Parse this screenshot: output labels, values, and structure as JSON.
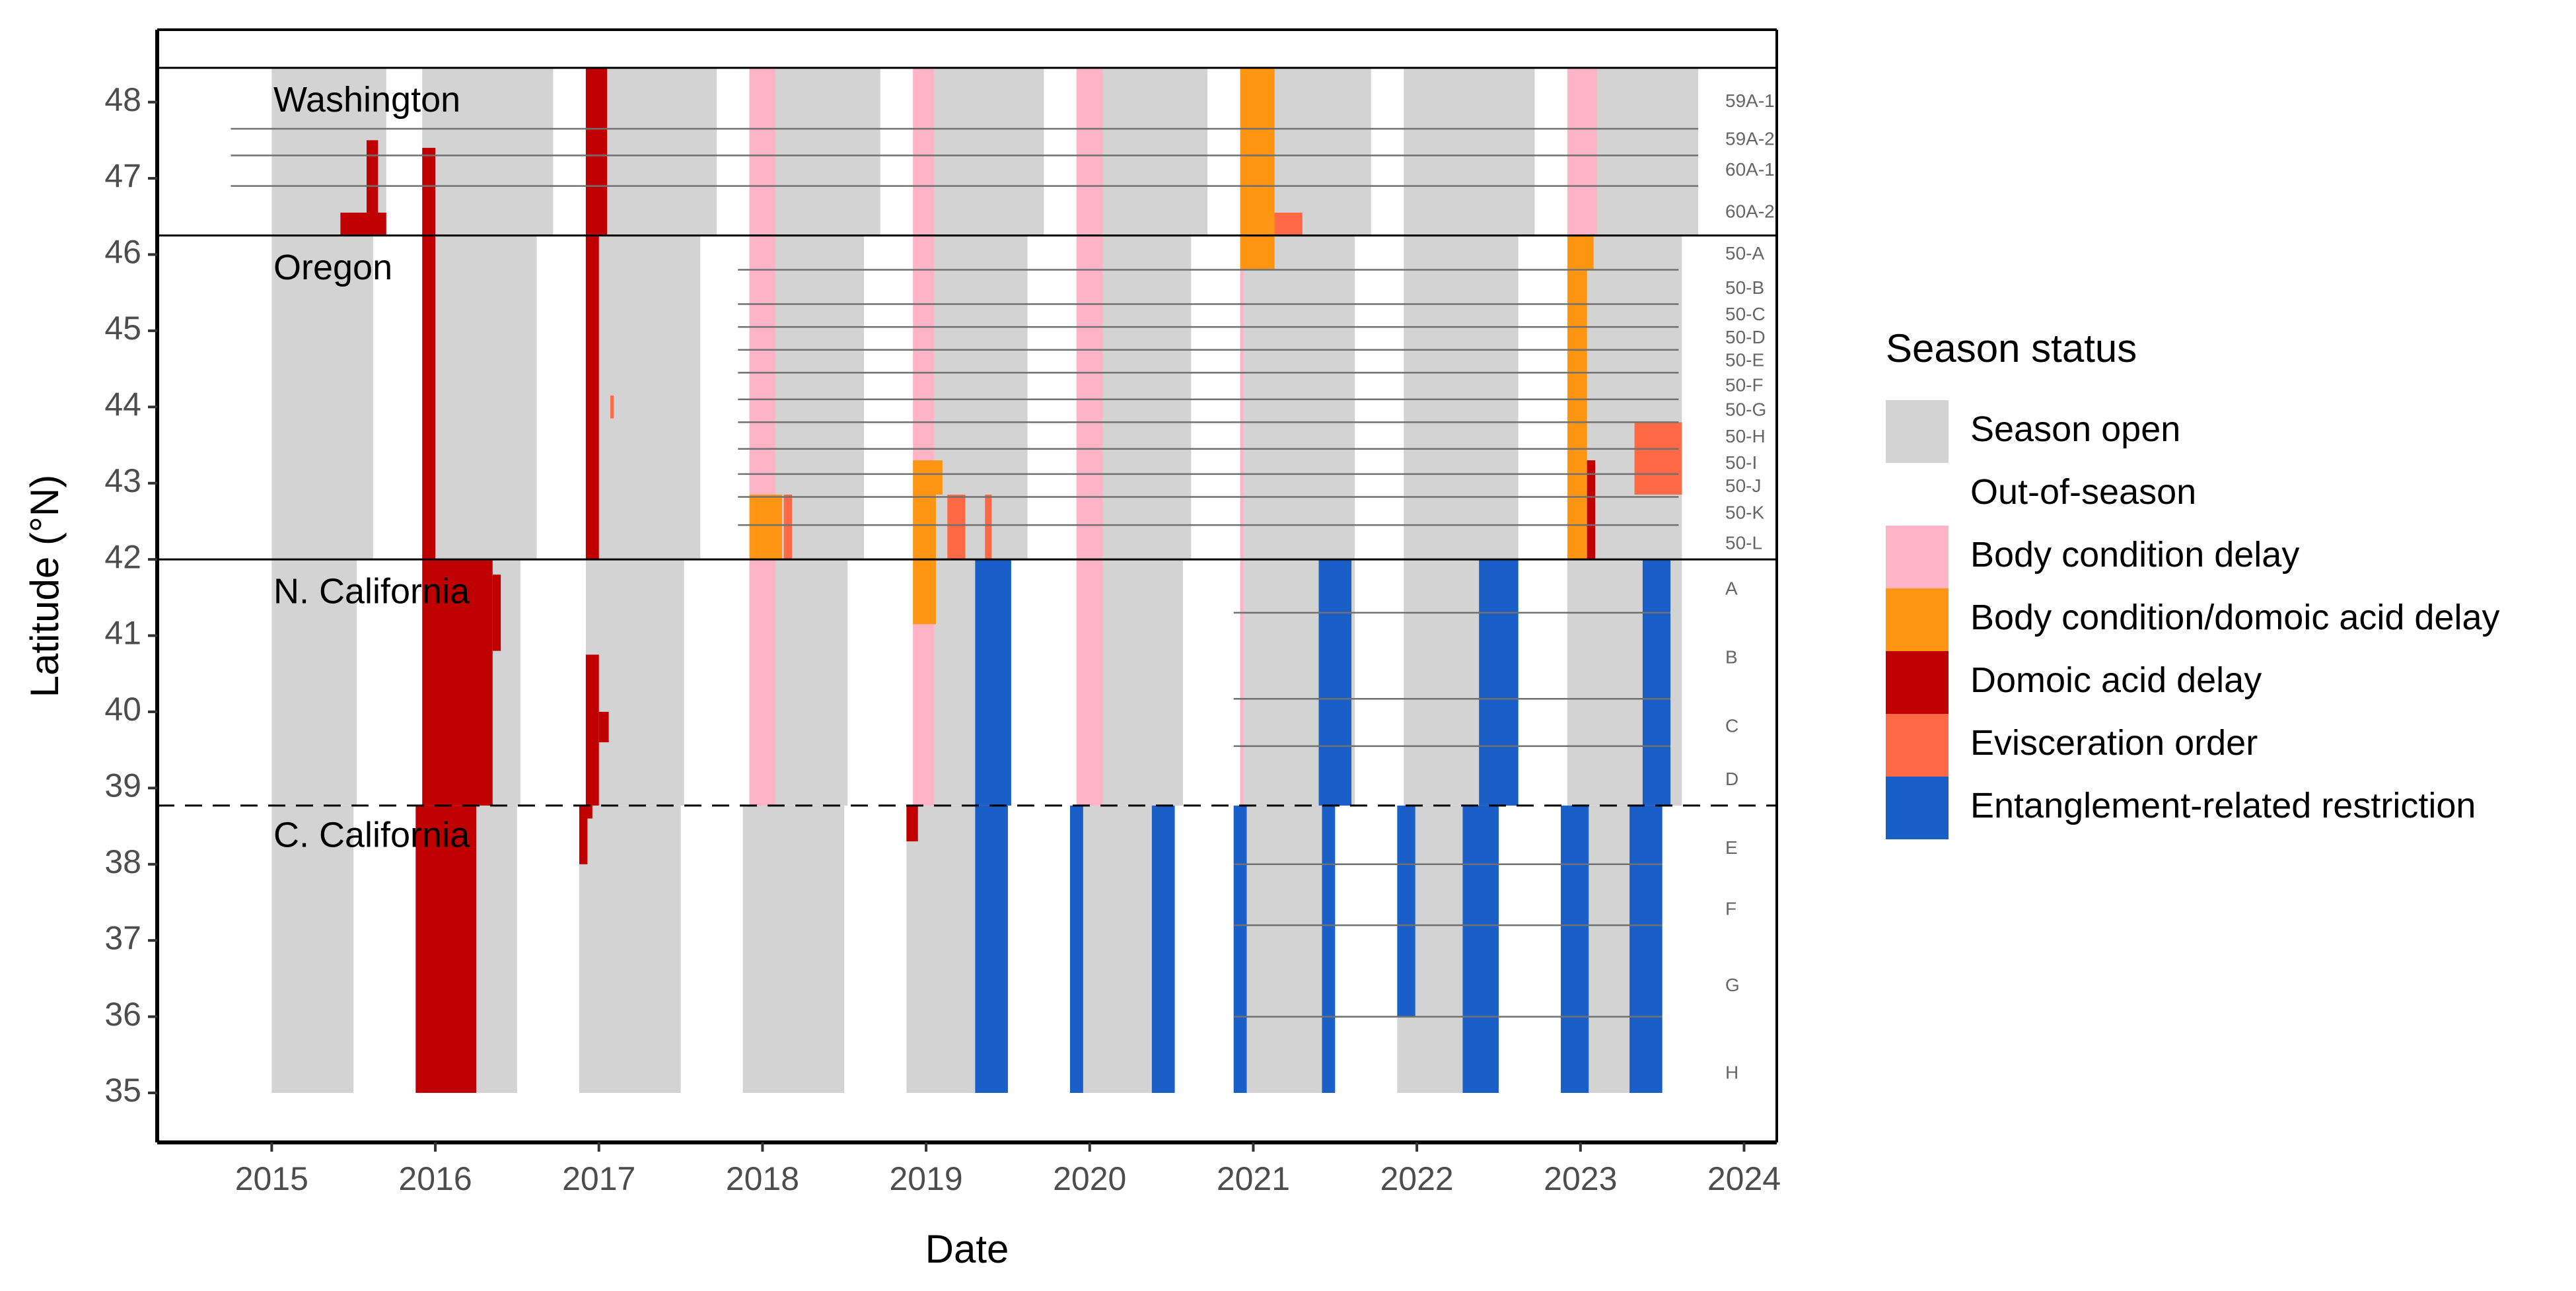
{
  "chart_data": {
    "type": "bar",
    "title": "",
    "xlabel": "Date",
    "ylabel": "Latitude (°N)",
    "xlim": [
      2014.3,
      2024.2
    ],
    "ylim": [
      34.35,
      48.95
    ],
    "x_ticks": [
      2015,
      2016,
      2017,
      2018,
      2019,
      2020,
      2021,
      2022,
      2023,
      2024
    ],
    "y_ticks": [
      35,
      36,
      37,
      38,
      39,
      40,
      41,
      42,
      43,
      44,
      45,
      46,
      47,
      48
    ],
    "grid": false,
    "legend": {
      "title": "Season status",
      "placement": "right",
      "entries": [
        {
          "label": "Season open",
          "color": "#d3d3d3"
        },
        {
          "label": "Out-of-season",
          "color": "#ffffff"
        },
        {
          "label": "Body condition delay",
          "color": "#ffb3c6"
        },
        {
          "label": "Body condition/domoic acid delay",
          "color": "#ff9510"
        },
        {
          "label": "Domoic acid delay",
          "color": "#c00000"
        },
        {
          "label": "Evisceration order",
          "color": "#ff6a45"
        },
        {
          "label": "Entanglement-related restriction",
          "color": "#1a5fc8"
        }
      ]
    },
    "region_boundaries": [
      {
        "lat": 48.45,
        "style": "solid"
      },
      {
        "lat": 46.25,
        "style": "solid"
      },
      {
        "lat": 42.0,
        "style": "solid"
      },
      {
        "lat": 38.77,
        "style": "dashed"
      }
    ],
    "regions": [
      {
        "name": "Washington",
        "label_lat": 48.0
      },
      {
        "name": "Oregon",
        "label_lat": 45.8
      },
      {
        "name": "N. California",
        "label_lat": 41.55
      },
      {
        "name": "C. California",
        "label_lat": 38.35
      }
    ],
    "zone_labels": [
      {
        "label": "59A-1",
        "lat": 48.0
      },
      {
        "label": "59A-2",
        "lat": 47.5
      },
      {
        "label": "60A-1",
        "lat": 47.1
      },
      {
        "label": "60A-2",
        "lat": 46.55
      },
      {
        "label": "50-A",
        "lat": 46.0
      },
      {
        "label": "50-B",
        "lat": 45.55
      },
      {
        "label": "50-C",
        "lat": 45.2
      },
      {
        "label": "50-D",
        "lat": 44.9
      },
      {
        "label": "50-E",
        "lat": 44.6
      },
      {
        "label": "50-F",
        "lat": 44.27
      },
      {
        "label": "50-G",
        "lat": 43.95
      },
      {
        "label": "50-H",
        "lat": 43.6
      },
      {
        "label": "50-I",
        "lat": 43.25
      },
      {
        "label": "50-J",
        "lat": 42.95
      },
      {
        "label": "50-K",
        "lat": 42.6
      },
      {
        "label": "50-L",
        "lat": 42.2
      },
      {
        "label": "A",
        "lat": 41.6
      },
      {
        "label": "B",
        "lat": 40.7
      },
      {
        "label": "C",
        "lat": 39.8
      },
      {
        "label": "D",
        "lat": 39.1
      },
      {
        "label": "E",
        "lat": 38.2
      },
      {
        "label": "F",
        "lat": 37.4
      },
      {
        "label": "G",
        "lat": 36.4
      },
      {
        "label": "H",
        "lat": 35.25
      }
    ],
    "zone_lines": [
      {
        "lat": 47.65,
        "x0": 2014.75,
        "x1": 2023.72
      },
      {
        "lat": 47.3,
        "x0": 2014.75,
        "x1": 2023.72
      },
      {
        "lat": 46.9,
        "x0": 2014.75,
        "x1": 2023.72
      },
      {
        "lat": 45.8,
        "x0": 2017.85,
        "x1": 2023.6
      },
      {
        "lat": 45.35,
        "x0": 2017.85,
        "x1": 2023.6
      },
      {
        "lat": 45.05,
        "x0": 2017.85,
        "x1": 2023.6
      },
      {
        "lat": 44.75,
        "x0": 2017.85,
        "x1": 2023.6
      },
      {
        "lat": 44.45,
        "x0": 2017.85,
        "x1": 2023.6
      },
      {
        "lat": 44.1,
        "x0": 2017.85,
        "x1": 2023.6
      },
      {
        "lat": 43.8,
        "x0": 2017.85,
        "x1": 2023.6
      },
      {
        "lat": 43.45,
        "x0": 2017.85,
        "x1": 2023.6
      },
      {
        "lat": 43.12,
        "x0": 2017.85,
        "x1": 2023.6
      },
      {
        "lat": 42.82,
        "x0": 2017.85,
        "x1": 2023.6
      },
      {
        "lat": 42.45,
        "x0": 2017.85,
        "x1": 2023.6
      },
      {
        "lat": 41.3,
        "x0": 2020.88,
        "x1": 2023.55
      },
      {
        "lat": 40.17,
        "x0": 2020.88,
        "x1": 2023.55
      },
      {
        "lat": 39.55,
        "x0": 2020.88,
        "x1": 2023.55
      },
      {
        "lat": 38.0,
        "x0": 2020.88,
        "x1": 2023.5
      },
      {
        "lat": 37.2,
        "x0": 2020.88,
        "x1": 2023.5
      },
      {
        "lat": 36.0,
        "x0": 2020.88,
        "x1": 2023.5
      }
    ],
    "series": [
      {
        "status": "Season open",
        "color": "#d3d3d3",
        "rects": [
          {
            "x0": 2015.0,
            "x1": 2015.7,
            "y0": 46.25,
            "y1": 48.45
          },
          {
            "x0": 2015.0,
            "x1": 2015.62,
            "y0": 42.0,
            "y1": 46.25
          },
          {
            "x0": 2015.0,
            "x1": 2015.52,
            "y0": 38.77,
            "y1": 42.0
          },
          {
            "x0": 2015.0,
            "x1": 2015.5,
            "y0": 35.0,
            "y1": 38.77
          },
          {
            "x0": 2015.92,
            "x1": 2016.72,
            "y0": 46.25,
            "y1": 48.45
          },
          {
            "x0": 2015.92,
            "x1": 2016.62,
            "y0": 42.0,
            "y1": 46.25
          },
          {
            "x0": 2015.92,
            "x1": 2016.52,
            "y0": 38.77,
            "y1": 42.0
          },
          {
            "x0": 2015.88,
            "x1": 2016.5,
            "y0": 35.0,
            "y1": 38.77
          },
          {
            "x0": 2016.92,
            "x1": 2017.72,
            "y0": 46.25,
            "y1": 48.45
          },
          {
            "x0": 2016.92,
            "x1": 2017.62,
            "y0": 42.0,
            "y1": 46.25
          },
          {
            "x0": 2016.92,
            "x1": 2017.52,
            "y0": 38.77,
            "y1": 42.0
          },
          {
            "x0": 2016.88,
            "x1": 2017.5,
            "y0": 35.0,
            "y1": 38.77
          },
          {
            "x0": 2017.92,
            "x1": 2018.72,
            "y0": 46.25,
            "y1": 48.45
          },
          {
            "x0": 2017.92,
            "x1": 2018.62,
            "y0": 42.0,
            "y1": 46.25
          },
          {
            "x0": 2017.92,
            "x1": 2018.52,
            "y0": 38.77,
            "y1": 42.0
          },
          {
            "x0": 2017.88,
            "x1": 2018.5,
            "y0": 35.0,
            "y1": 38.77
          },
          {
            "x0": 2018.92,
            "x1": 2019.72,
            "y0": 46.25,
            "y1": 48.45
          },
          {
            "x0": 2018.92,
            "x1": 2019.62,
            "y0": 42.0,
            "y1": 46.25
          },
          {
            "x0": 2018.92,
            "x1": 2019.52,
            "y0": 38.77,
            "y1": 42.0
          },
          {
            "x0": 2018.88,
            "x1": 2019.5,
            "y0": 35.0,
            "y1": 38.77
          },
          {
            "x0": 2019.92,
            "x1": 2020.72,
            "y0": 46.25,
            "y1": 48.45
          },
          {
            "x0": 2019.92,
            "x1": 2020.62,
            "y0": 42.0,
            "y1": 46.25
          },
          {
            "x0": 2019.92,
            "x1": 2020.57,
            "y0": 38.77,
            "y1": 42.0
          },
          {
            "x0": 2019.88,
            "x1": 2020.52,
            "y0": 35.0,
            "y1": 38.77
          },
          {
            "x0": 2020.92,
            "x1": 2021.72,
            "y0": 46.25,
            "y1": 48.45
          },
          {
            "x0": 2020.92,
            "x1": 2021.62,
            "y0": 42.0,
            "y1": 46.25
          },
          {
            "x0": 2020.92,
            "x1": 2021.62,
            "y0": 38.77,
            "y1": 42.0
          },
          {
            "x0": 2020.88,
            "x1": 2021.5,
            "y0": 35.0,
            "y1": 38.77
          },
          {
            "x0": 2021.92,
            "x1": 2022.72,
            "y0": 46.25,
            "y1": 48.45
          },
          {
            "x0": 2021.92,
            "x1": 2022.62,
            "y0": 42.0,
            "y1": 46.25
          },
          {
            "x0": 2021.92,
            "x1": 2022.62,
            "y0": 38.77,
            "y1": 42.0
          },
          {
            "x0": 2021.88,
            "x1": 2022.5,
            "y0": 35.0,
            "y1": 38.77
          },
          {
            "x0": 2022.92,
            "x1": 2023.72,
            "y0": 46.25,
            "y1": 48.45
          },
          {
            "x0": 2022.92,
            "x1": 2023.62,
            "y0": 42.0,
            "y1": 46.25
          },
          {
            "x0": 2022.92,
            "x1": 2023.62,
            "y0": 38.77,
            "y1": 42.0
          },
          {
            "x0": 2022.88,
            "x1": 2023.5,
            "y0": 35.0,
            "y1": 38.77
          }
        ]
      },
      {
        "status": "Body condition delay",
        "color": "#ffb3c6",
        "rects": [
          {
            "x0": 2017.92,
            "x1": 2018.08,
            "y0": 38.77,
            "y1": 48.45
          },
          {
            "x0": 2018.92,
            "x1": 2019.05,
            "y0": 38.77,
            "y1": 48.45
          },
          {
            "x0": 2019.92,
            "x1": 2020.08,
            "y0": 38.77,
            "y1": 48.45
          },
          {
            "x0": 2020.92,
            "x1": 2020.94,
            "y0": 38.77,
            "y1": 46.25
          },
          {
            "x0": 2022.92,
            "x1": 2023.1,
            "y0": 46.25,
            "y1": 48.45
          }
        ]
      },
      {
        "status": "Body condition/domoic acid delay",
        "color": "#ff9510",
        "rects": [
          {
            "x0": 2017.92,
            "x1": 2018.12,
            "y0": 42.0,
            "y1": 42.85
          },
          {
            "x0": 2018.92,
            "x1": 2019.1,
            "y0": 42.85,
            "y1": 43.3
          },
          {
            "x0": 2018.92,
            "x1": 2019.06,
            "y0": 41.15,
            "y1": 42.85
          },
          {
            "x0": 2020.92,
            "x1": 2021.13,
            "y0": 45.8,
            "y1": 48.45
          },
          {
            "x0": 2022.92,
            "x1": 2023.08,
            "y0": 45.8,
            "y1": 46.25
          },
          {
            "x0": 2022.92,
            "x1": 2023.04,
            "y0": 42.0,
            "y1": 45.8
          }
        ]
      },
      {
        "status": "Domoic acid delay",
        "color": "#c00000",
        "rects": [
          {
            "x0": 2015.42,
            "x1": 2015.7,
            "y0": 46.25,
            "y1": 46.55
          },
          {
            "x0": 2015.58,
            "x1": 2015.65,
            "y0": 46.55,
            "y1": 47.5
          },
          {
            "x0": 2015.92,
            "x1": 2016.0,
            "y0": 42.0,
            "y1": 47.4
          },
          {
            "x0": 2015.92,
            "x1": 2016.35,
            "y0": 38.77,
            "y1": 42.0
          },
          {
            "x0": 2016.35,
            "x1": 2016.4,
            "y0": 40.8,
            "y1": 41.8
          },
          {
            "x0": 2015.88,
            "x1": 2016.25,
            "y0": 35.0,
            "y1": 38.77
          },
          {
            "x0": 2016.92,
            "x1": 2017.05,
            "y0": 46.25,
            "y1": 48.45
          },
          {
            "x0": 2016.92,
            "x1": 2017.0,
            "y0": 42.0,
            "y1": 46.25
          },
          {
            "x0": 2016.92,
            "x1": 2017.0,
            "y0": 38.77,
            "y1": 40.75
          },
          {
            "x0": 2017.0,
            "x1": 2017.06,
            "y0": 39.6,
            "y1": 40.0
          },
          {
            "x0": 2016.88,
            "x1": 2016.96,
            "y0": 38.6,
            "y1": 38.77
          },
          {
            "x0": 2016.88,
            "x1": 2016.93,
            "y0": 38.0,
            "y1": 38.6
          },
          {
            "x0": 2018.88,
            "x1": 2018.95,
            "y0": 38.3,
            "y1": 38.77
          },
          {
            "x0": 2023.04,
            "x1": 2023.09,
            "y0": 42.0,
            "y1": 43.3
          }
        ]
      },
      {
        "status": "Evisceration order",
        "color": "#ff6a45",
        "rects": [
          {
            "x0": 2017.07,
            "x1": 2017.09,
            "y0": 43.85,
            "y1": 44.15
          },
          {
            "x0": 2018.13,
            "x1": 2018.18,
            "y0": 42.0,
            "y1": 42.85
          },
          {
            "x0": 2019.13,
            "x1": 2019.24,
            "y0": 42.0,
            "y1": 42.85
          },
          {
            "x0": 2019.36,
            "x1": 2019.4,
            "y0": 42.0,
            "y1": 42.85
          },
          {
            "x0": 2021.13,
            "x1": 2021.3,
            "y0": 46.25,
            "y1": 46.55
          },
          {
            "x0": 2023.33,
            "x1": 2023.62,
            "y0": 42.85,
            "y1": 43.8
          }
        ]
      },
      {
        "status": "Entanglement-related restriction",
        "color": "#1a5fc8",
        "rects": [
          {
            "x0": 2019.3,
            "x1": 2019.52,
            "y0": 38.77,
            "y1": 42.0
          },
          {
            "x0": 2019.3,
            "x1": 2019.5,
            "y0": 35.0,
            "y1": 38.77
          },
          {
            "x0": 2019.88,
            "x1": 2019.96,
            "y0": 35.0,
            "y1": 38.77
          },
          {
            "x0": 2020.38,
            "x1": 2020.52,
            "y0": 35.0,
            "y1": 38.77
          },
          {
            "x0": 2021.4,
            "x1": 2021.6,
            "y0": 38.77,
            "y1": 42.0
          },
          {
            "x0": 2020.88,
            "x1": 2020.96,
            "y0": 35.0,
            "y1": 38.77
          },
          {
            "x0": 2021.42,
            "x1": 2021.5,
            "y0": 35.0,
            "y1": 38.77
          },
          {
            "x0": 2022.38,
            "x1": 2022.62,
            "y0": 38.77,
            "y1": 42.0
          },
          {
            "x0": 2021.88,
            "x1": 2021.99,
            "y0": 36.0,
            "y1": 38.77
          },
          {
            "x0": 2022.28,
            "x1": 2022.5,
            "y0": 35.0,
            "y1": 38.77
          },
          {
            "x0": 2023.38,
            "x1": 2023.55,
            "y0": 38.77,
            "y1": 42.0
          },
          {
            "x0": 2022.88,
            "x1": 2023.05,
            "y0": 35.0,
            "y1": 38.77
          },
          {
            "x0": 2023.3,
            "x1": 2023.5,
            "y0": 35.0,
            "y1": 38.77
          }
        ]
      }
    ]
  }
}
